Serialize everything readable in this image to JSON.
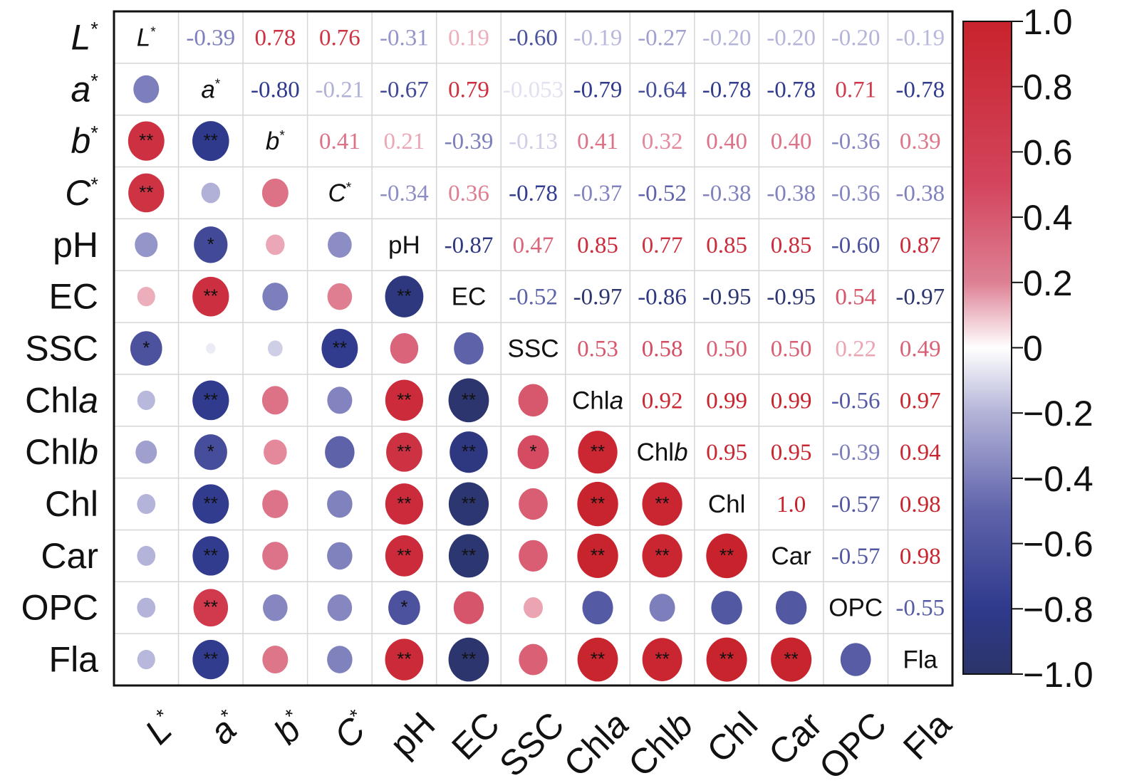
{
  "chart_data": {
    "type": "heatmap",
    "subtype": "correlation-matrix",
    "title": "",
    "variables": [
      {
        "name": "L",
        "suffix": "*",
        "italic": "all"
      },
      {
        "name": "a",
        "suffix": "*",
        "italic": "all"
      },
      {
        "name": "b",
        "suffix": "*",
        "italic": "all"
      },
      {
        "name": "C",
        "suffix": "*",
        "italic": "all"
      },
      {
        "name": "pH",
        "suffix": "",
        "italic": "none"
      },
      {
        "name": "EC",
        "suffix": "",
        "italic": "none"
      },
      {
        "name": "SSC",
        "suffix": "",
        "italic": "none"
      },
      {
        "name": "Chl",
        "suffix": "a",
        "italic": "suffix"
      },
      {
        "name": "Chl",
        "suffix": "b",
        "italic": "suffix"
      },
      {
        "name": "Chl",
        "suffix": "",
        "italic": "none"
      },
      {
        "name": "Car",
        "suffix": "",
        "italic": "none"
      },
      {
        "name": "OPC",
        "suffix": "",
        "italic": "none"
      },
      {
        "name": "Fla",
        "suffix": "",
        "italic": "none"
      }
    ],
    "labels": [
      "L*",
      "a*",
      "b*",
      "C*",
      "pH",
      "EC",
      "SSC",
      "Chla",
      "Chlb",
      "Chl",
      "Car",
      "OPC",
      "Fla"
    ],
    "upper_display": "numbers",
    "lower_display": "circles",
    "upper_text": [
      [
        null,
        "-0.39",
        "0.78",
        "0.76",
        "-0.31",
        "0.19",
        "-0.60",
        "-0.19",
        "-0.27",
        "-0.20",
        "-0.20",
        "-0.20",
        "-0.19"
      ],
      [
        null,
        null,
        "-0.80",
        "-0.21",
        "-0.67",
        "0.79",
        "-0.053",
        "-0.79",
        "-0.64",
        "-0.78",
        "-0.78",
        "0.71",
        "-0.78"
      ],
      [
        null,
        null,
        null,
        "0.41",
        "0.21",
        "-0.39",
        "-0.13",
        "0.41",
        "0.32",
        "0.40",
        "0.40",
        "-0.36",
        "0.39"
      ],
      [
        null,
        null,
        null,
        null,
        "-0.34",
        "0.36",
        "-0.78",
        "-0.37",
        "-0.52",
        "-0.38",
        "-0.38",
        "-0.36",
        "-0.38"
      ],
      [
        null,
        null,
        null,
        null,
        null,
        "-0.87",
        "0.47",
        "0.85",
        "0.77",
        "0.85",
        "0.85",
        "-0.60",
        "0.87"
      ],
      [
        null,
        null,
        null,
        null,
        null,
        null,
        "-0.52",
        "-0.97",
        "-0.86",
        "-0.95",
        "-0.95",
        "0.54",
        "-0.97"
      ],
      [
        null,
        null,
        null,
        null,
        null,
        null,
        null,
        "0.53",
        "0.58",
        "0.50",
        "0.50",
        "0.22",
        "0.49"
      ],
      [
        null,
        null,
        null,
        null,
        null,
        null,
        null,
        null,
        "0.92",
        "0.99",
        "0.99",
        "-0.56",
        "0.97"
      ],
      [
        null,
        null,
        null,
        null,
        null,
        null,
        null,
        null,
        null,
        "0.95",
        "0.95",
        "-0.39",
        "0.94"
      ],
      [
        null,
        null,
        null,
        null,
        null,
        null,
        null,
        null,
        null,
        null,
        "1.0",
        "-0.57",
        "0.98"
      ],
      [
        null,
        null,
        null,
        null,
        null,
        null,
        null,
        null,
        null,
        null,
        null,
        "-0.57",
        "0.98"
      ],
      [
        null,
        null,
        null,
        null,
        null,
        null,
        null,
        null,
        null,
        null,
        null,
        null,
        "-0.55"
      ],
      [
        null,
        null,
        null,
        null,
        null,
        null,
        null,
        null,
        null,
        null,
        null,
        null,
        null
      ]
    ],
    "significance_lower": [
      [
        "",
        "",
        "",
        "",
        "",
        "",
        "",
        "",
        "",
        "",
        "",
        "",
        ""
      ],
      [
        "",
        "",
        "",
        "",
        "",
        "",
        "",
        "",
        "",
        "",
        "",
        "",
        ""
      ],
      [
        "**",
        "**",
        "",
        "",
        "",
        "",
        "",
        "",
        "",
        "",
        "",
        "",
        ""
      ],
      [
        "**",
        "",
        "",
        "",
        "",
        "",
        "",
        "",
        "",
        "",
        "",
        "",
        ""
      ],
      [
        "",
        "*",
        "",
        "",
        "",
        "",
        "",
        "",
        "",
        "",
        "",
        "",
        ""
      ],
      [
        "",
        "**",
        "",
        "",
        "**",
        "",
        "",
        "",
        "",
        "",
        "",
        "",
        ""
      ],
      [
        "*",
        "",
        "",
        "**",
        "",
        "",
        "",
        "",
        "",
        "",
        "",
        "",
        ""
      ],
      [
        "",
        "**",
        "",
        "",
        "**",
        "**",
        "",
        "",
        "",
        "",
        "",
        "",
        ""
      ],
      [
        "",
        "*",
        "",
        "",
        "**",
        "**",
        "*",
        "**",
        "",
        "",
        "",
        "",
        ""
      ],
      [
        "",
        "**",
        "",
        "",
        "**",
        "**",
        "",
        "**",
        "**",
        "",
        "",
        "",
        ""
      ],
      [
        "",
        "**",
        "",
        "",
        "**",
        "**",
        "",
        "**",
        "**",
        "**",
        "",
        "",
        ""
      ],
      [
        "",
        "**",
        "",
        "",
        "*",
        "",
        "",
        "",
        "",
        "",
        "",
        "",
        ""
      ],
      [
        "",
        "**",
        "",
        "",
        "**",
        "**",
        "",
        "**",
        "**",
        "**",
        "**",
        "",
        ""
      ]
    ],
    "colorbar": {
      "range": [
        -1.0,
        1.0
      ],
      "ticks": [
        {
          "value": 1.0,
          "label": "1.0"
        },
        {
          "value": 0.8,
          "label": "0.8"
        },
        {
          "value": 0.6,
          "label": "0.6"
        },
        {
          "value": 0.4,
          "label": "0.4"
        },
        {
          "value": 0.2,
          "label": "0.2"
        },
        {
          "value": 0,
          "label": "0"
        },
        {
          "value": -0.2,
          "label": "−0.2"
        },
        {
          "value": -0.4,
          "label": "−0.4"
        },
        {
          "value": -0.6,
          "label": "−0.6"
        },
        {
          "value": -0.8,
          "label": "−0.8"
        },
        {
          "value": -1.0,
          "label": "−1.0"
        }
      ],
      "colors": {
        "negative": "#2b3470",
        "mid_negative": "#3a3f94",
        "zero": "#ffffff",
        "mid_positive": "#d23a4e",
        "positive": "#c8232c"
      },
      "placement": "right"
    },
    "grid": true,
    "xlabel": "",
    "ylabel": ""
  }
}
